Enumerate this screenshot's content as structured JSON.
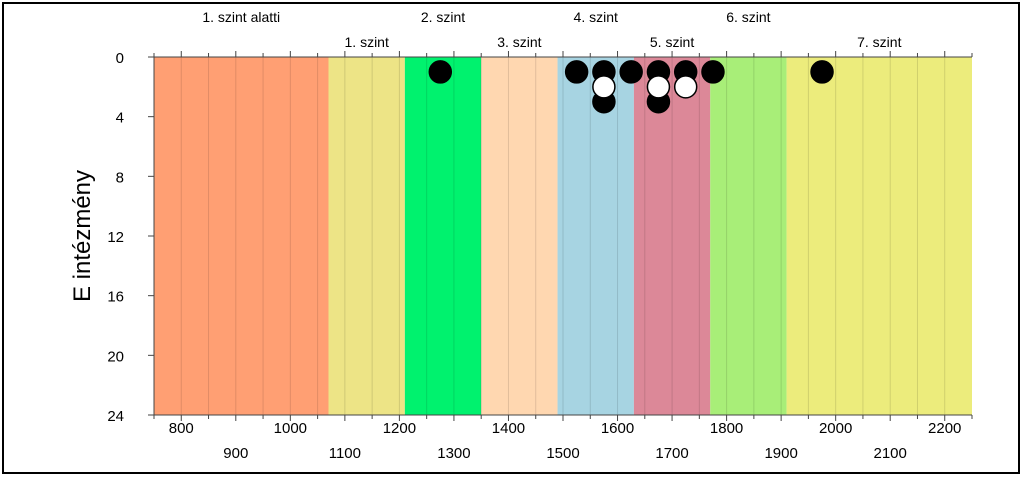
{
  "chart_data": {
    "type": "scatter",
    "ylabel": "E intézmény",
    "xlim": [
      750,
      2250
    ],
    "ylim": [
      0,
      24
    ],
    "y_inverted": true,
    "x_ticks_top_row": [
      800,
      1000,
      1200,
      1400,
      1600,
      1800,
      2000,
      2200
    ],
    "x_ticks_bottom_row": [
      900,
      1100,
      1300,
      1500,
      1700,
      1900,
      2100
    ],
    "y_ticks": [
      0,
      4,
      8,
      12,
      16,
      20,
      24
    ],
    "grid": "vertical minor lines every 50",
    "levels": [
      {
        "label": "1. szint alatti",
        "from": 750,
        "to": 1070,
        "color": "#FF9F73",
        "label_row": "top"
      },
      {
        "label": "1. szint",
        "from": 1070,
        "to": 1210,
        "color": "#EDE486",
        "label_row": "bottom"
      },
      {
        "label": "2. szint",
        "from": 1210,
        "to": 1350,
        "color": "#00F26E",
        "label_row": "top"
      },
      {
        "label": "3. szint",
        "from": 1350,
        "to": 1490,
        "color": "#FFD7B0",
        "label_row": "bottom"
      },
      {
        "label": "4. szint",
        "from": 1490,
        "to": 1630,
        "color": "#A7D4E2",
        "label_row": "top"
      },
      {
        "label": "5. szint",
        "from": 1630,
        "to": 1770,
        "color": "#DC8898",
        "label_row": "bottom"
      },
      {
        "label": "6. szint",
        "from": 1770,
        "to": 1910,
        "color": "#A8EE78",
        "label_row": "top"
      },
      {
        "label": "7. szint",
        "from": 1910,
        "to": 2250,
        "color": "#ECEC7C",
        "label_row": "bottom"
      }
    ],
    "series": [
      {
        "style": "filled-black",
        "points": [
          {
            "x": 1275,
            "y": 1
          },
          {
            "x": 1525,
            "y": 1
          },
          {
            "x": 1575,
            "y": 1
          },
          {
            "x": 1575,
            "y": 3
          },
          {
            "x": 1625,
            "y": 1
          },
          {
            "x": 1675,
            "y": 1
          },
          {
            "x": 1675,
            "y": 3
          },
          {
            "x": 1725,
            "y": 1
          },
          {
            "x": 1775,
            "y": 1
          },
          {
            "x": 1975,
            "y": 1
          }
        ]
      },
      {
        "style": "open-white",
        "points": [
          {
            "x": 1575,
            "y": 2
          },
          {
            "x": 1675,
            "y": 2
          },
          {
            "x": 1725,
            "y": 2
          }
        ]
      }
    ]
  }
}
